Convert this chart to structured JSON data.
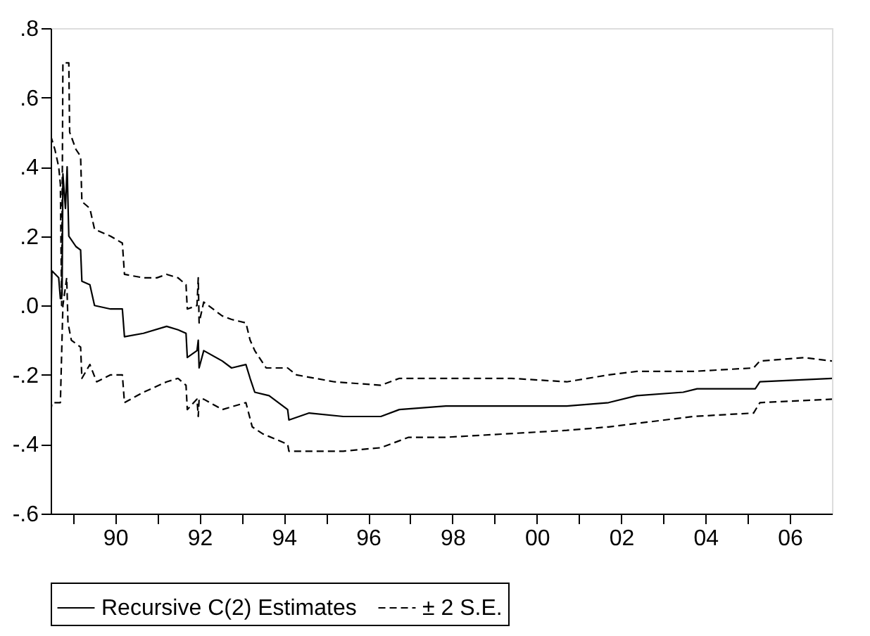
{
  "chart_data": {
    "type": "line",
    "series": [
      {
        "name": "Recursive C(2) Estimates",
        "color": "#000000",
        "line_style": "solid",
        "x": [
          1988.47,
          1988.48,
          1988.5,
          1988.66,
          1988.7,
          1988.74,
          1988.76,
          1988.82,
          1988.86,
          1988.9,
          1989.07,
          1989.18,
          1989.21,
          1989.4,
          1989.51,
          1989.89,
          1990.17,
          1990.22,
          1990.67,
          1991.22,
          1991.49,
          1991.68,
          1991.71,
          1991.94,
          1991.97,
          1991.99,
          1992.1,
          1992.54,
          1992.76,
          1993.1,
          1993.2,
          1993.31,
          1993.65,
          1994.09,
          1994.12,
          1994.6,
          1995.41,
          1996.3,
          1996.74,
          1997.84,
          2000.71,
          2001.7,
          2002.37,
          2003.47,
          2003.8,
          2005.18,
          2005.29,
          2007.0
        ],
        "values": [
          0.6,
          -0.02,
          0.1,
          0.08,
          0.02,
          0.03,
          0.38,
          0.28,
          0.4,
          0.2,
          0.17,
          0.16,
          0.07,
          0.06,
          0.0,
          -0.01,
          -0.01,
          -0.09,
          -0.08,
          -0.06,
          -0.07,
          -0.08,
          -0.15,
          -0.13,
          -0.1,
          -0.18,
          -0.13,
          -0.16,
          -0.18,
          -0.17,
          -0.21,
          -0.25,
          -0.26,
          -0.3,
          -0.33,
          -0.31,
          -0.32,
          -0.32,
          -0.3,
          -0.29,
          -0.29,
          -0.28,
          -0.26,
          -0.25,
          -0.24,
          -0.24,
          -0.22,
          -0.21
        ]
      },
      {
        "name": "± 2 S.E.",
        "color": "#000000",
        "line_style": "dashed",
        "x": [
          1988.47,
          1988.57,
          1988.66,
          1988.7,
          1988.73,
          1988.76,
          1988.9,
          1988.92,
          1989.07,
          1989.18,
          1989.21,
          1989.4,
          1989.51,
          1989.89,
          1990.17,
          1990.22,
          1990.67,
          1990.99,
          1991.22,
          1991.49,
          1991.68,
          1991.71,
          1991.94,
          1991.97,
          1991.99,
          1992.1,
          1992.54,
          1992.76,
          1993.1,
          1993.2,
          1993.31,
          1993.58,
          1994.09,
          1994.3,
          1995.2,
          1996.3,
          1996.74,
          1997.84,
          1999.4,
          2000.71,
          2001.7,
          2002.37,
          2003.7,
          2005.14,
          2005.29,
          2006.34,
          2007.0
        ],
        "values": [
          0.49,
          0.45,
          0.4,
          0.35,
          0.0,
          0.7,
          0.7,
          0.5,
          0.45,
          0.43,
          0.3,
          0.28,
          0.22,
          0.2,
          0.18,
          0.09,
          0.08,
          0.08,
          0.09,
          0.08,
          0.06,
          -0.01,
          0.0,
          0.08,
          -0.05,
          0.01,
          -0.03,
          -0.04,
          -0.05,
          -0.1,
          -0.13,
          -0.18,
          -0.18,
          -0.2,
          -0.22,
          -0.23,
          -0.21,
          -0.21,
          -0.21,
          -0.22,
          -0.2,
          -0.19,
          -0.19,
          -0.18,
          -0.16,
          -0.15,
          -0.16
        ]
      },
      {
        "color": "#000000",
        "line_style": "dashed",
        "x": [
          1988.47,
          1988.48,
          1988.5,
          1988.7,
          1988.76,
          1988.85,
          1988.88,
          1988.96,
          1989.18,
          1989.21,
          1989.4,
          1989.56,
          1989.89,
          1990.17,
          1990.22,
          1990.67,
          1991.22,
          1991.49,
          1991.68,
          1991.71,
          1991.94,
          1991.97,
          1991.99,
          1992.1,
          1992.54,
          1993.1,
          1993.25,
          1993.5,
          1994.09,
          1994.12,
          1995.41,
          1996.3,
          1996.96,
          1997.84,
          2000.71,
          2001.7,
          2002.37,
          2003.7,
          2005.14,
          2005.29,
          2007.0
        ],
        "values": [
          -0.5,
          -0.3,
          -0.28,
          -0.28,
          0.0,
          0.08,
          -0.05,
          -0.1,
          -0.12,
          -0.21,
          -0.17,
          -0.22,
          -0.2,
          -0.2,
          -0.28,
          -0.25,
          -0.22,
          -0.21,
          -0.23,
          -0.3,
          -0.27,
          -0.32,
          -0.27,
          -0.27,
          -0.3,
          -0.28,
          -0.35,
          -0.37,
          -0.4,
          -0.42,
          -0.42,
          -0.41,
          -0.38,
          -0.38,
          -0.36,
          -0.35,
          -0.34,
          -0.32,
          -0.31,
          -0.28,
          -0.27
        ]
      }
    ],
    "xlim": [
      1988.47,
      2007.0
    ],
    "xticks": [
      {
        "value": 1989,
        "label": null
      },
      {
        "value": 1990,
        "label": "90"
      },
      {
        "value": 1991,
        "label": null
      },
      {
        "value": 1992,
        "label": "92"
      },
      {
        "value": 1993,
        "label": null
      },
      {
        "value": 1994,
        "label": "94"
      },
      {
        "value": 1995,
        "label": null
      },
      {
        "value": 1996,
        "label": "96"
      },
      {
        "value": 1997,
        "label": null
      },
      {
        "value": 1998,
        "label": "98"
      },
      {
        "value": 1999,
        "label": null
      },
      {
        "value": 2000,
        "label": "00"
      },
      {
        "value": 2001,
        "label": null
      },
      {
        "value": 2002,
        "label": "02"
      },
      {
        "value": 2003,
        "label": null
      },
      {
        "value": 2004,
        "label": "04"
      },
      {
        "value": 2005,
        "label": null
      },
      {
        "value": 2006,
        "label": "06"
      }
    ],
    "ylim": [
      -0.6,
      0.8
    ],
    "yticks": [
      {
        "value": -0.6,
        "label": "-.6"
      },
      {
        "value": -0.4,
        "label": "-.4"
      },
      {
        "value": -0.2,
        "label": "-.2"
      },
      {
        "value": 0.0,
        "label": ".0"
      },
      {
        "value": 0.2,
        "label": ".2"
      },
      {
        "value": 0.4,
        "label": ".4"
      },
      {
        "value": 0.6,
        "label": ".6"
      },
      {
        "value": 0.8,
        "label": ".8"
      }
    ],
    "legend": "bottom",
    "grid": false
  }
}
